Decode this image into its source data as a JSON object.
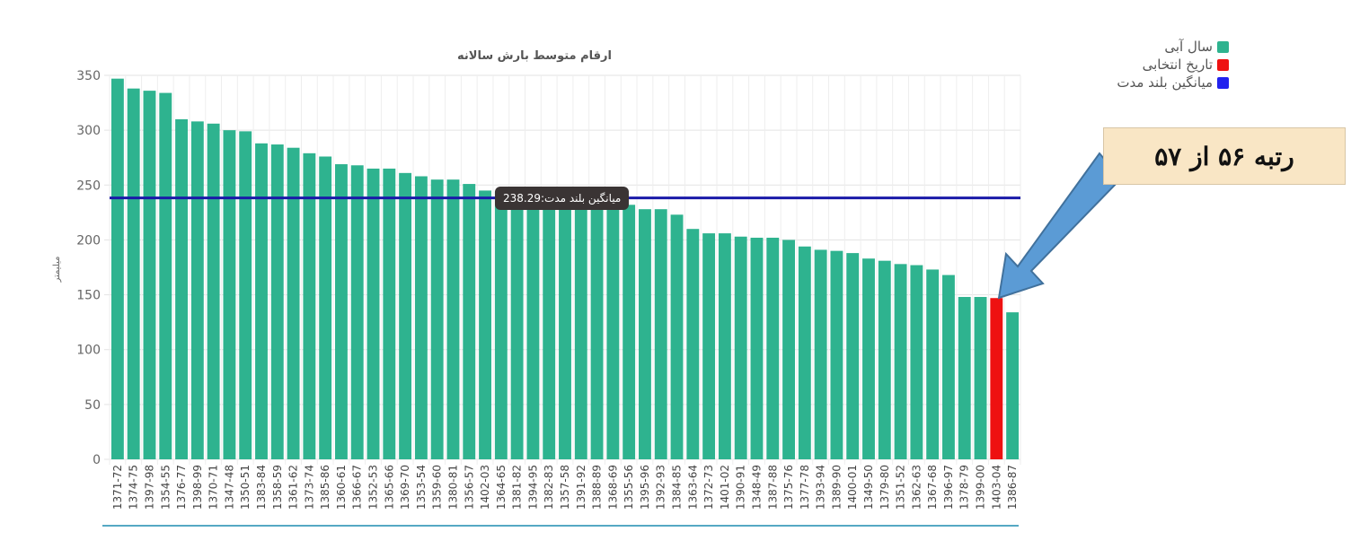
{
  "chart_data": {
    "type": "bar",
    "title": "ارقام متوسط بارش سالانه",
    "ylabel": "میلیمتر",
    "xlabel": "",
    "ylim": [
      0,
      350
    ],
    "yticks": [
      0,
      50,
      100,
      150,
      200,
      250,
      300,
      350
    ],
    "grid": true,
    "legend_position": "top-right",
    "categories": [
      "1371-72",
      "1374-75",
      "1397-98",
      "1354-55",
      "1376-77",
      "1398-99",
      "1370-71",
      "1347-48",
      "1350-51",
      "1383-84",
      "1358-59",
      "1361-62",
      "1373-74",
      "1385-86",
      "1360-61",
      "1366-67",
      "1352-53",
      "1365-66",
      "1369-70",
      "1353-54",
      "1359-60",
      "1380-81",
      "1356-57",
      "1402-03",
      "1364-65",
      "1381-82",
      "1394-95",
      "1382-83",
      "1357-58",
      "1391-92",
      "1388-89",
      "1368-69",
      "1355-56",
      "1395-96",
      "1392-93",
      "1384-85",
      "1363-64",
      "1372-73",
      "1401-02",
      "1390-91",
      "1348-49",
      "1387-88",
      "1375-76",
      "1377-78",
      "1393-94",
      "1389-90",
      "1400-01",
      "1349-50",
      "1379-80",
      "1351-52",
      "1362-63",
      "1367-68",
      "1396-97",
      "1378-79",
      "1399-00",
      "1403-04",
      "1386-87"
    ],
    "values": [
      347,
      338,
      336,
      334,
      310,
      308,
      306,
      300,
      299,
      288,
      287,
      284,
      279,
      276,
      269,
      268,
      265,
      265,
      261,
      258,
      255,
      255,
      251,
      245,
      244,
      243,
      242,
      240,
      239,
      236,
      235,
      234,
      232,
      228,
      228,
      223,
      210,
      206,
      206,
      203,
      202,
      202,
      200,
      194,
      191,
      190,
      188,
      183,
      181,
      178,
      177,
      173,
      168,
      148,
      148,
      147,
      134
    ],
    "highlight_index": 55,
    "series": [
      {
        "name": "سال آبی",
        "color": "#2eb38f"
      },
      {
        "name": "تاریخ انتخابی",
        "color": "#ee1111"
      },
      {
        "name": "میانگین بلند مدت",
        "color": "#2222ee"
      }
    ],
    "average": {
      "value": 238.29,
      "color": "#1a1aa8",
      "tooltip": "میانگین بلند مدت:238.29"
    }
  },
  "callout": {
    "text": "رتبه ۵۶ از ۵۷",
    "arrow_color": "#5b9bd5"
  }
}
